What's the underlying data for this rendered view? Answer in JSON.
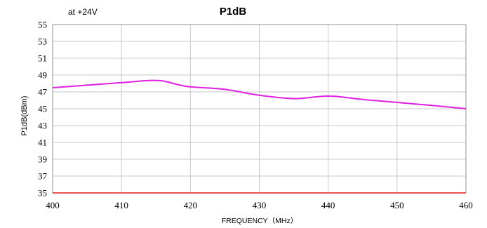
{
  "chart_data": {
    "type": "line",
    "title": "P1dB",
    "subtitle": "at +24V",
    "xlabel": "FREQUENCY（MHz）",
    "ylabel": "P1dB(dBm)",
    "xlim": [
      400,
      460
    ],
    "ylim": [
      35,
      55
    ],
    "xticks": [
      400,
      410,
      420,
      430,
      440,
      450,
      460
    ],
    "yticks": [
      35,
      37,
      39,
      41,
      43,
      45,
      47,
      49,
      51,
      53,
      55
    ],
    "grid": true,
    "colors": {
      "series": "#e020e0",
      "baseline": "#e01818",
      "grid": "#c8c8c8",
      "axis": "#909090"
    },
    "series": [
      {
        "x": [
          400,
          405,
          410,
          414,
          416,
          418,
          420,
          425,
          430,
          435,
          438,
          440,
          442,
          445,
          450,
          455,
          460
        ],
        "values": [
          47.5,
          47.8,
          48.1,
          48.35,
          48.3,
          47.9,
          47.6,
          47.3,
          46.6,
          46.2,
          46.4,
          46.5,
          46.4,
          46.1,
          45.75,
          45.4,
          45.0
        ]
      }
    ]
  }
}
